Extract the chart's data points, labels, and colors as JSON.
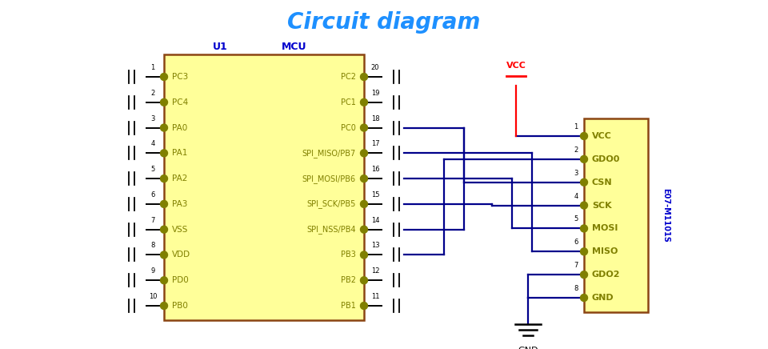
{
  "title": "Circuit diagram",
  "title_color": "#1E90FF",
  "title_fontsize": 20,
  "bg_color": "#ffffff",
  "mcu_fill": "#FFFF99",
  "mcu_edge": "#8B4513",
  "rf_fill": "#FFFF99",
  "rf_edge": "#8B4513",
  "label_color": "#808000",
  "wire_color": "#00008B",
  "vcc_color": "#FF0000",
  "gnd_color": "#000000",
  "u1_label": "U1",
  "mcu_label": "MCU",
  "rf_label": "E07-M1101S",
  "left_pins": [
    {
      "num": 1,
      "name": "PC3"
    },
    {
      "num": 2,
      "name": "PC4"
    },
    {
      "num": 3,
      "name": "PA0"
    },
    {
      "num": 4,
      "name": "PA1"
    },
    {
      "num": 5,
      "name": "PA2"
    },
    {
      "num": 6,
      "name": "PA3"
    },
    {
      "num": 7,
      "name": "VSS"
    },
    {
      "num": 8,
      "name": "VDD"
    },
    {
      "num": 9,
      "name": "PD0"
    },
    {
      "num": 10,
      "name": "PB0"
    }
  ],
  "right_pins": [
    {
      "num": 20,
      "name": "PC2"
    },
    {
      "num": 19,
      "name": "PC1"
    },
    {
      "num": 18,
      "name": "PC0"
    },
    {
      "num": 17,
      "name": "SPI_MISO/PB7"
    },
    {
      "num": 16,
      "name": "SPI_MOSI/PB6"
    },
    {
      "num": 15,
      "name": "SPI_SCK/PB5"
    },
    {
      "num": 14,
      "name": "SPI_NSS/PB4"
    },
    {
      "num": 13,
      "name": "PB3"
    },
    {
      "num": 12,
      "name": "PB2"
    },
    {
      "num": 11,
      "name": "PB1"
    }
  ],
  "rf_pins": [
    {
      "num": 1,
      "name": "VCC"
    },
    {
      "num": 2,
      "name": "GDO0"
    },
    {
      "num": 3,
      "name": "CSN"
    },
    {
      "num": 4,
      "name": "SCK"
    },
    {
      "num": 5,
      "name": "MOSI"
    },
    {
      "num": 6,
      "name": "MISO"
    },
    {
      "num": 7,
      "name": "GDO2"
    },
    {
      "num": 8,
      "name": "GND"
    }
  ]
}
